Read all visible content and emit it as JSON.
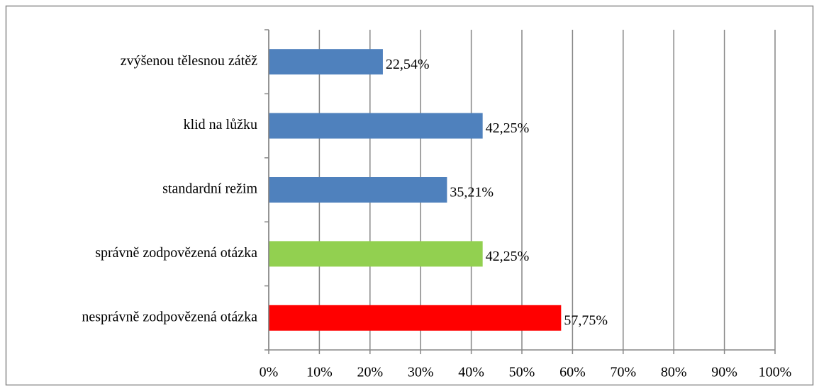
{
  "chart_data": {
    "type": "hbar",
    "categories": [
      "zvýšenou tělesnou zátěž",
      "klid na lůžku",
      "standardní režim",
      "správně zodpovězená otázka",
      "nesprávně zodpovězená otázka"
    ],
    "values": [
      22.54,
      42.25,
      35.21,
      42.25,
      57.75
    ],
    "value_labels": [
      "22,54%",
      "42,25%",
      "35,21%",
      "42,25%",
      "57,75%"
    ],
    "colors": [
      "#4f81bd",
      "#4f81bd",
      "#4f81bd",
      "#92d050",
      "#ff0000"
    ],
    "xlim": [
      0,
      100
    ],
    "xticks": [
      {
        "value": 0,
        "label": "0%"
      },
      {
        "value": 10,
        "label": "10%"
      },
      {
        "value": 20,
        "label": "20%"
      },
      {
        "value": 30,
        "label": "30%"
      },
      {
        "value": 40,
        "label": "40%"
      },
      {
        "value": 50,
        "label": "50%"
      },
      {
        "value": 60,
        "label": "60%"
      },
      {
        "value": 70,
        "label": "70%"
      },
      {
        "value": 80,
        "label": "80%"
      },
      {
        "value": 90,
        "label": "90%"
      },
      {
        "value": 100,
        "label": "100%"
      }
    ],
    "grid": true
  }
}
